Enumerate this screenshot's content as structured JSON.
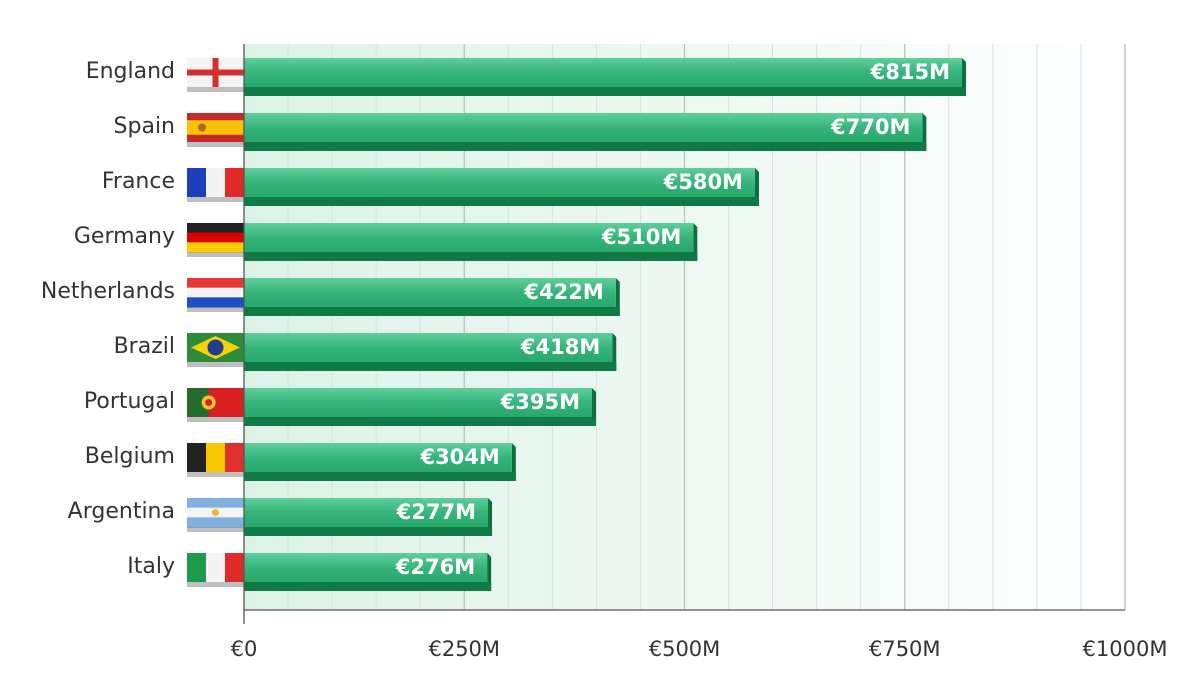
{
  "chart_data": {
    "type": "bar",
    "orientation": "horizontal",
    "categories": [
      "England",
      "Spain",
      "France",
      "Germany",
      "Netherlands",
      "Brazil",
      "Portugal",
      "Belgium",
      "Argentina",
      "Italy"
    ],
    "values": [
      815,
      770,
      580,
      510,
      422,
      418,
      395,
      304,
      277,
      276
    ],
    "value_labels": [
      "€815M",
      "€770M",
      "€580M",
      "€510M",
      "€422M",
      "€418M",
      "€395M",
      "€304M",
      "€277M",
      "€276M"
    ],
    "xlim": [
      0,
      1000
    ],
    "x_ticks": [
      0,
      250,
      500,
      750,
      1000
    ],
    "x_tick_labels": [
      "€0",
      "€250M",
      "€500M",
      "€750M",
      "€1000M"
    ],
    "grid": true,
    "bar_color": "#2fb37c",
    "bar_shadow_color": "#0f7a45",
    "flag_icons": [
      "england-flag-icon",
      "spain-flag-icon",
      "france-flag-icon",
      "germany-flag-icon",
      "netherlands-flag-icon",
      "brazil-flag-icon",
      "portugal-flag-icon",
      "belgium-flag-icon",
      "argentina-flag-icon",
      "italy-flag-icon"
    ]
  }
}
